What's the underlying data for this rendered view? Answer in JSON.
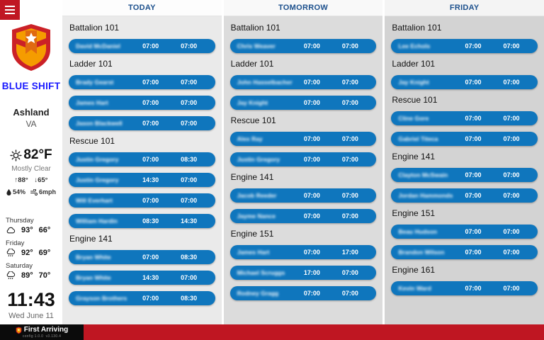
{
  "sidebar": {
    "shift_label": "BLUE SHIFT",
    "city": "Ashland",
    "state": "VA",
    "weather": {
      "temp": "82°F",
      "condition": "Mostly Clear",
      "high": "↑88°",
      "low": "↓65°",
      "humidity": "54%",
      "wind": "6mph"
    },
    "forecast": [
      {
        "day": "Thursday",
        "icon": "cloud-icon",
        "high": "93°",
        "low": "66°"
      },
      {
        "day": "Friday",
        "icon": "rain-icon",
        "high": "92°",
        "low": "69°"
      },
      {
        "day": "Saturday",
        "icon": "rain-icon",
        "high": "89°",
        "low": "70°"
      }
    ],
    "clock": {
      "time": "11:43",
      "date": "Wed June 11"
    }
  },
  "schedule": {
    "columns": [
      {
        "label": "TODAY",
        "sections": [
          {
            "title": "Battalion 101",
            "rows": [
              {
                "name": "David McDaniel",
                "start": "07:00",
                "end": "07:00"
              }
            ]
          },
          {
            "title": "Ladder 101",
            "rows": [
              {
                "name": "Brady Gearst",
                "start": "07:00",
                "end": "07:00"
              },
              {
                "name": "James Hart",
                "start": "07:00",
                "end": "07:00"
              },
              {
                "name": "Jason Blackwell",
                "start": "07:00",
                "end": "07:00"
              }
            ]
          },
          {
            "title": "Rescue 101",
            "rows": [
              {
                "name": "Justin Gregory",
                "start": "07:00",
                "end": "08:30"
              },
              {
                "name": "Justin Gregory",
                "start": "14:30",
                "end": "07:00"
              },
              {
                "name": "Will Everhart",
                "start": "07:00",
                "end": "07:00"
              },
              {
                "name": "William Hardin",
                "start": "08:30",
                "end": "14:30"
              }
            ]
          },
          {
            "title": "Engine 141",
            "rows": [
              {
                "name": "Bryan White",
                "start": "07:00",
                "end": "08:30"
              },
              {
                "name": "Bryan White",
                "start": "14:30",
                "end": "07:00"
              },
              {
                "name": "Grayson Brothers",
                "start": "07:00",
                "end": "08:30"
              }
            ]
          }
        ]
      },
      {
        "label": "TOMORROW",
        "sections": [
          {
            "title": "Battalion 101",
            "rows": [
              {
                "name": "Chris Weaver",
                "start": "07:00",
                "end": "07:00"
              }
            ]
          },
          {
            "title": "Ladder 101",
            "rows": [
              {
                "name": "John Hasselbacher",
                "start": "07:00",
                "end": "07:00"
              },
              {
                "name": "Jay Knight",
                "start": "07:00",
                "end": "07:00"
              }
            ]
          },
          {
            "title": "Rescue 101",
            "rows": [
              {
                "name": "Alex Ray",
                "start": "07:00",
                "end": "07:00"
              },
              {
                "name": "Justin Gregory",
                "start": "07:00",
                "end": "07:00"
              }
            ]
          },
          {
            "title": "Engine 141",
            "rows": [
              {
                "name": "Jacob Reeder",
                "start": "07:00",
                "end": "07:00"
              },
              {
                "name": "Jayme Nance",
                "start": "07:00",
                "end": "07:00"
              }
            ]
          },
          {
            "title": "Engine 151",
            "rows": [
              {
                "name": "James Hart",
                "start": "07:00",
                "end": "17:00"
              },
              {
                "name": "Michael Scruggs",
                "start": "17:00",
                "end": "07:00"
              },
              {
                "name": "Rodney Gragg",
                "start": "07:00",
                "end": "07:00"
              }
            ]
          }
        ]
      },
      {
        "label": "FRIDAY",
        "sections": [
          {
            "title": "Battalion 101",
            "rows": [
              {
                "name": "Lee Echols",
                "start": "07:00",
                "end": "07:00"
              }
            ]
          },
          {
            "title": "Ladder 101",
            "rows": [
              {
                "name": "Jay Knight",
                "start": "07:00",
                "end": "07:00"
              }
            ]
          },
          {
            "title": "Rescue 101",
            "rows": [
              {
                "name": "Cline Gore",
                "start": "07:00",
                "end": "07:00"
              },
              {
                "name": "Gabriel Titeca",
                "start": "07:00",
                "end": "07:00"
              }
            ]
          },
          {
            "title": "Engine 141",
            "rows": [
              {
                "name": "Clayton McSwain",
                "start": "07:00",
                "end": "07:00"
              },
              {
                "name": "Jordan Hammonds",
                "start": "07:00",
                "end": "07:00"
              }
            ]
          },
          {
            "title": "Engine 151",
            "rows": [
              {
                "name": "Beau Hudson",
                "start": "07:00",
                "end": "07:00"
              },
              {
                "name": "Brandon Wilson",
                "start": "07:00",
                "end": "07:00"
              }
            ]
          },
          {
            "title": "Engine 161",
            "rows": [
              {
                "name": "Kevin Ward",
                "start": "07:00",
                "end": "07:00"
              }
            ]
          }
        ]
      }
    ]
  },
  "footer": {
    "brand": "First Arriving",
    "config": "config 1.0.0",
    "version": "v3.130.4"
  },
  "icons": {
    "menu-icon": "hamburger bars",
    "shield-logo": "department shield with star",
    "sun-icon": "sun with rays",
    "cloud-icon": "cloud",
    "rain-icon": "rain cloud",
    "droplet-icon": "humidity droplet",
    "wind-icon": "wind",
    "brand-shield-icon": "first arriving shield"
  },
  "colors": {
    "pill_blue": "#0f76bd",
    "header_blue": "#1b4f8c",
    "shift_blue": "#1a1aff",
    "brand_red": "#bf1622",
    "menu_red": "#c01723"
  }
}
